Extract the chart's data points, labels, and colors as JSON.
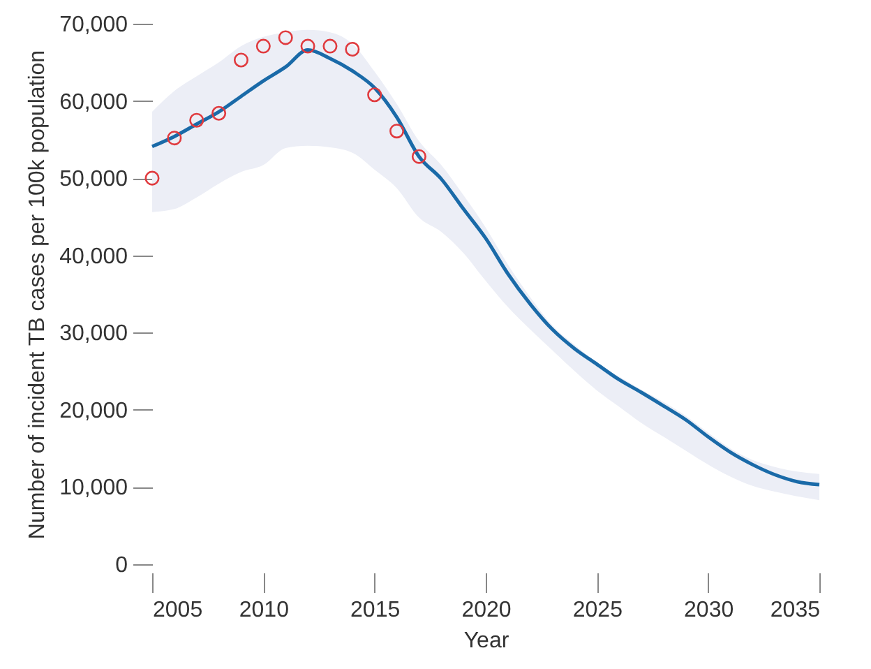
{
  "chart_data": {
    "type": "line",
    "xlabel": "Year",
    "ylabel": "Number of incident TB cases per 100k population",
    "xlim": [
      2005,
      2035
    ],
    "xticks": [
      2005,
      2010,
      2015,
      2020,
      2025,
      2030,
      2035
    ],
    "ylim": [
      0,
      70000
    ],
    "yticks": [
      {
        "value": 0,
        "label": "0"
      },
      {
        "value": 10000,
        "label": "10,000"
      },
      {
        "value": 20000,
        "label": "20,000"
      },
      {
        "value": 30000,
        "label": "30,000"
      },
      {
        "value": 40000,
        "label": "40,000"
      },
      {
        "value": 50000,
        "label": "50,000"
      },
      {
        "value": 60000,
        "label": "60,000"
      },
      {
        "value": 70000,
        "label": "70,000"
      }
    ],
    "series": [
      {
        "type": "line",
        "color": "#1a6aa8",
        "x": [
          2005,
          2006,
          2007,
          2008,
          2009,
          2010,
          2011,
          2012,
          2013,
          2014,
          2015,
          2016,
          2017,
          2018,
          2019,
          2020,
          2021,
          2022,
          2023,
          2024,
          2025,
          2026,
          2027,
          2028,
          2029,
          2030,
          2031,
          2032,
          2033,
          2034,
          2035
        ],
        "values": [
          54100,
          55400,
          57000,
          58600,
          60600,
          62600,
          64400,
          66600,
          65500,
          63900,
          61700,
          57900,
          52800,
          49900,
          46000,
          42200,
          37600,
          33700,
          30400,
          27900,
          25900,
          23900,
          22250,
          20500,
          18700,
          16500,
          14500,
          12900,
          11600,
          10700,
          10300
        ],
        "lower": [
          45600,
          46000,
          47500,
          49300,
          50800,
          51700,
          53900,
          54200,
          54000,
          53300,
          51100,
          48700,
          44900,
          43050,
          40300,
          36700,
          33300,
          30400,
          27700,
          25000,
          22500,
          20400,
          18300,
          16500,
          14700,
          12900,
          11350,
          10150,
          9400,
          8800,
          8300
        ],
        "upper": [
          58600,
          61300,
          63200,
          65000,
          67100,
          68300,
          68900,
          69200,
          68900,
          67400,
          63800,
          59600,
          54800,
          51700,
          47800,
          43600,
          38800,
          34600,
          30900,
          28400,
          26100,
          24300,
          22600,
          21000,
          19200,
          17050,
          15000,
          13500,
          12600,
          12000,
          11700
        ]
      },
      {
        "type": "scatter",
        "color": "#e03a3e",
        "marker": "circle",
        "x": [
          2005,
          2006,
          2007,
          2008,
          2009,
          2010,
          2011,
          2012,
          2013,
          2014,
          2015,
          2016,
          2017
        ],
        "values": [
          50000,
          55200,
          57500,
          58400,
          65300,
          67100,
          68200,
          67100,
          67100,
          66700,
          60800,
          56100,
          52800
        ]
      }
    ]
  }
}
